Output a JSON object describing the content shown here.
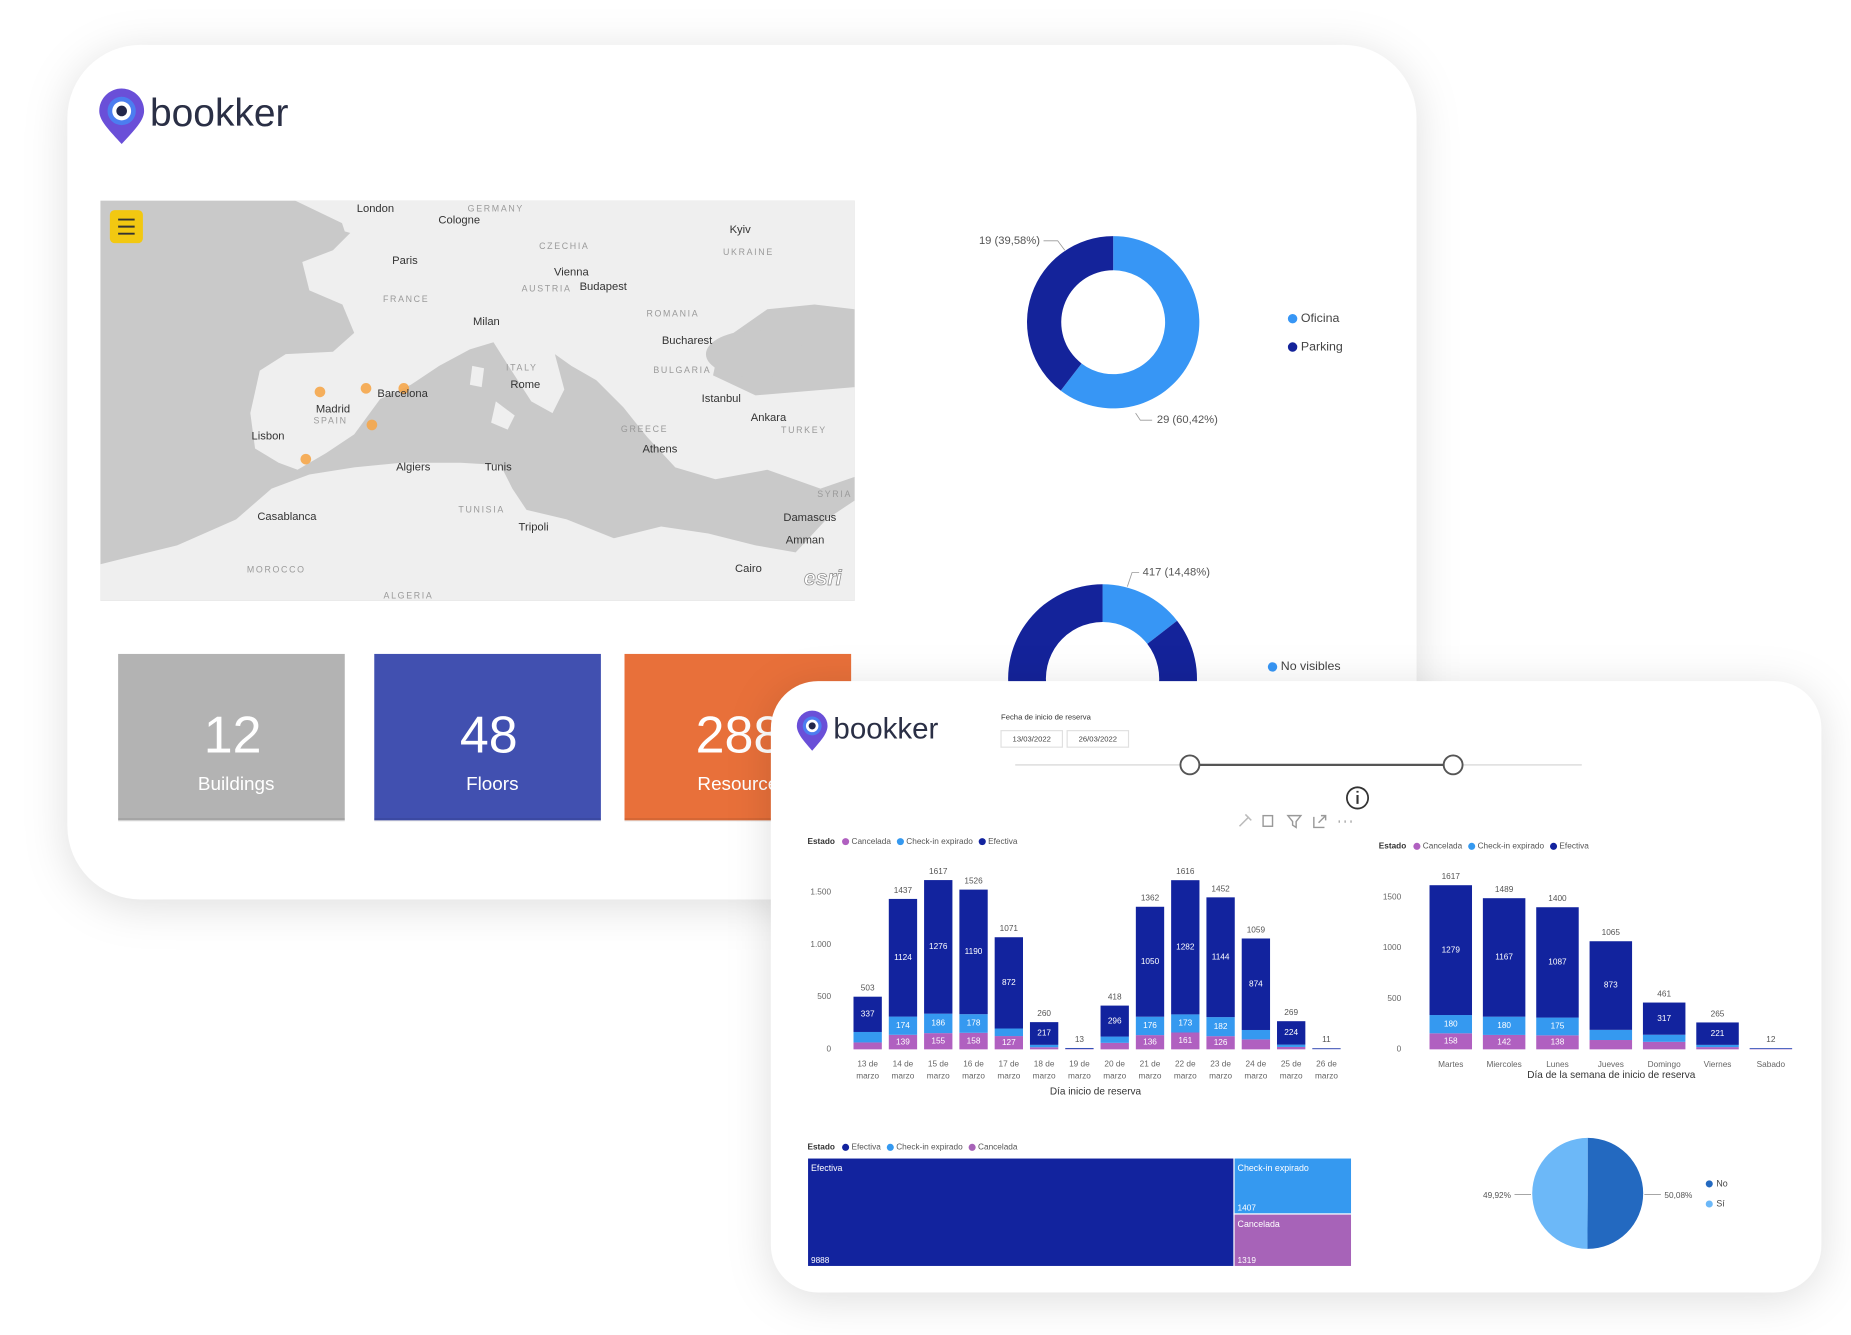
{
  "back_card": {
    "logo": "bookker",
    "map": {
      "cities": [
        "London",
        "Cologne",
        "Kyiv",
        "Paris",
        "Vienna",
        "Budapest",
        "Milan",
        "Bucharest",
        "Barcelona",
        "Rome",
        "Madrid",
        "Istanbul",
        "Ankara",
        "Lisbon",
        "Athens",
        "Algiers",
        "Tunis",
        "Casablanca",
        "Damascus",
        "Tripoli",
        "Amman",
        "Cairo"
      ],
      "countries": [
        "GERMANY",
        "UKRAINE",
        "CZECHIA",
        "AUSTRIA",
        "FRANCE",
        "ROMANIA",
        "ITALY",
        "BULGARIA",
        "SPAIN",
        "GREECE",
        "TURKEY",
        "SYRIA",
        "TUNISIA",
        "MOROCCO",
        "ALGERIA"
      ],
      "attribution": "esri"
    },
    "kpis": [
      {
        "value": 12,
        "label": "Buildings",
        "color": "#b3b3b3"
      },
      {
        "value": 48,
        "label": "Floors",
        "color": "#4150b0"
      },
      {
        "value": 288,
        "label": "Resources",
        "color": "#e8703a"
      }
    ]
  },
  "front_card": {
    "logo": "bookker",
    "date_filter": {
      "title": "Fecha de inicio de reserva",
      "start": "13/03/2022",
      "end": "26/03/2022"
    }
  },
  "chart_data": [
    {
      "type": "donut",
      "categories": [
        "Oficina",
        "Parking"
      ],
      "values": [
        29,
        19
      ],
      "value_labels": [
        "29 (60,42%)",
        "19 (39,58%)"
      ],
      "colors": [
        "#3796f5",
        "#14239a"
      ]
    },
    {
      "type": "donut",
      "categories": [
        "No visibles",
        null
      ],
      "values": [
        417,
        2463
      ],
      "value_labels": [
        "417 (14,48%)",
        null
      ],
      "colors": [
        "#3796f5",
        "#14239a"
      ]
    },
    {
      "type": "stacked_bar",
      "legend_title": "Estado",
      "categories": [
        "13 de marzo",
        "14 de marzo",
        "15 de marzo",
        "16 de marzo",
        "17 de marzo",
        "18 de marzo",
        "19 de marzo",
        "20 de marzo",
        "21 de marzo",
        "22 de marzo",
        "23 de marzo",
        "24 de marzo",
        "25 de marzo",
        "26 de marzo"
      ],
      "series": [
        {
          "name": "Cancelada",
          "color": "#b060c0",
          "values": [
            66,
            139,
            155,
            158,
            127,
            20,
            3,
            62,
            136,
            161,
            126,
            95,
            23,
            2
          ]
        },
        {
          "name": "Check-in expirado",
          "color": "#3599f0",
          "values": [
            100,
            174,
            186,
            178,
            72,
            23,
            3,
            60,
            176,
            173,
            182,
            90,
            22,
            3
          ]
        },
        {
          "name": "Efectiva",
          "color": "#12239e",
          "values": [
            337,
            1124,
            1276,
            1190,
            872,
            217,
            7,
            296,
            1050,
            1282,
            1144,
            874,
            224,
            6
          ]
        }
      ],
      "totals": [
        503,
        1437,
        1617,
        1526,
        1071,
        260,
        13,
        418,
        1362,
        1616,
        1452,
        1059,
        269,
        11
      ],
      "ylim": [
        0,
        1750
      ],
      "yticks": [
        0,
        500,
        {
          "value": 1000,
          "label": "1.000"
        },
        {
          "value": 1500,
          "label": "1.500"
        }
      ],
      "xlabel": "Día inicio de reserva"
    },
    {
      "type": "stacked_bar",
      "legend_title": "Estado",
      "categories": [
        "Martes",
        "Miercoles",
        "Lunes",
        "Jueves",
        "Domingo",
        "Viernes",
        "Sabado"
      ],
      "series": [
        {
          "name": "Cancelada",
          "color": "#b060c0",
          "values": [
            158,
            142,
            138,
            92,
            74,
            22,
            3
          ]
        },
        {
          "name": "Check-in expirado",
          "color": "#3599f0",
          "values": [
            180,
            180,
            175,
            100,
            70,
            22,
            3
          ]
        },
        {
          "name": "Efectiva",
          "color": "#12239e",
          "values": [
            1279,
            1167,
            1087,
            873,
            317,
            221,
            6
          ]
        }
      ],
      "totals": [
        1617,
        1489,
        1400,
        1065,
        461,
        265,
        12
      ],
      "ylim": [
        0,
        1750
      ],
      "yticks": [
        0,
        500,
        1000,
        1500
      ],
      "xlabel": "Día de la semana de inicio de reserva"
    },
    {
      "type": "treemap",
      "legend_title": "Estado",
      "categories": [
        "Efectiva",
        "Check-in expirado",
        "Cancelada"
      ],
      "values": [
        9888,
        1407,
        1319
      ],
      "colors": [
        "#12239e",
        "#3599f0",
        "#a763b8"
      ]
    },
    {
      "type": "pie",
      "categories": [
        "No",
        "Sí"
      ],
      "values": [
        50.08,
        49.92
      ],
      "value_labels": [
        "50,08%",
        "49,92%"
      ],
      "colors": [
        "#2369c0",
        "#6cb8f8"
      ]
    }
  ]
}
